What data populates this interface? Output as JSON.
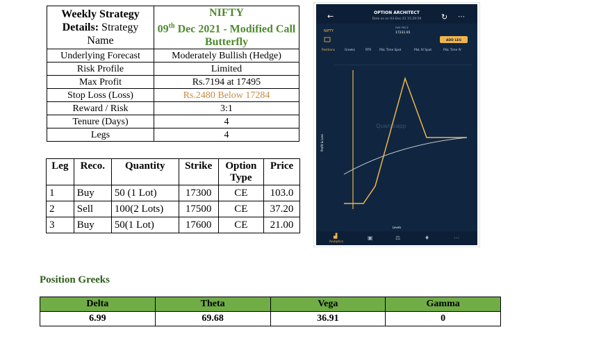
{
  "strategy": {
    "label_bold": "Weekly Strategy Details:",
    "label_rest": "Strategy Name",
    "name_line1": "NIFTY",
    "name_day": "09",
    "name_suffix": "th",
    "name_rest": "Dec 2021 - Modified Call Butterfly",
    "rows": [
      [
        "Underlying Forecast",
        "Moderately Bullish (Hedge)"
      ],
      [
        "Risk Profile",
        "Limited"
      ],
      [
        "Max Profit",
        "Rs.7194 at 17495"
      ],
      [
        "Stop Loss (Loss)",
        "Rs.2480 Below 17284"
      ],
      [
        "Reward / Risk",
        "3:1"
      ],
      [
        "Tenure (Days)",
        "4"
      ],
      [
        "Legs",
        "4"
      ]
    ]
  },
  "legs": {
    "header": [
      "Leg",
      "Reco.",
      "Quantity",
      "Strike",
      "Option Type",
      "Price"
    ],
    "rows": [
      [
        "1",
        "Buy",
        "50 (1 Lot)",
        "17300",
        "CE",
        "103.0"
      ],
      [
        "2",
        "Sell",
        "100(2 Lots)",
        "17500",
        "CE",
        "37.20"
      ],
      [
        "3",
        "Buy",
        "50(1 Lot)",
        "17600",
        "CE",
        "21.00"
      ]
    ]
  },
  "app": {
    "title": "OPTION ARCHITECT",
    "subtitle": "Data as on 03-Dec-21 15:29:59",
    "symbol": "NIFTY",
    "fair_price_label": "FAIR PRICE",
    "fair_price": "17231.65",
    "add_leg": "ADD LEG",
    "tabs": [
      "Positions",
      "Greeks",
      "RTR",
      "P&L Time Spot",
      "P&L IV Spot",
      "P&L Time IV"
    ],
    "y_axis": "Profit & Loss",
    "x_axis": "Levels",
    "watermark": "Quantsapp",
    "nav": "Analytics"
  },
  "greeks": {
    "title": "Position Greeks",
    "header": [
      "Delta",
      "Theta",
      "Vega",
      "Gamma"
    ],
    "values": [
      "6.99",
      "69.68",
      "36.91",
      "0"
    ]
  }
}
